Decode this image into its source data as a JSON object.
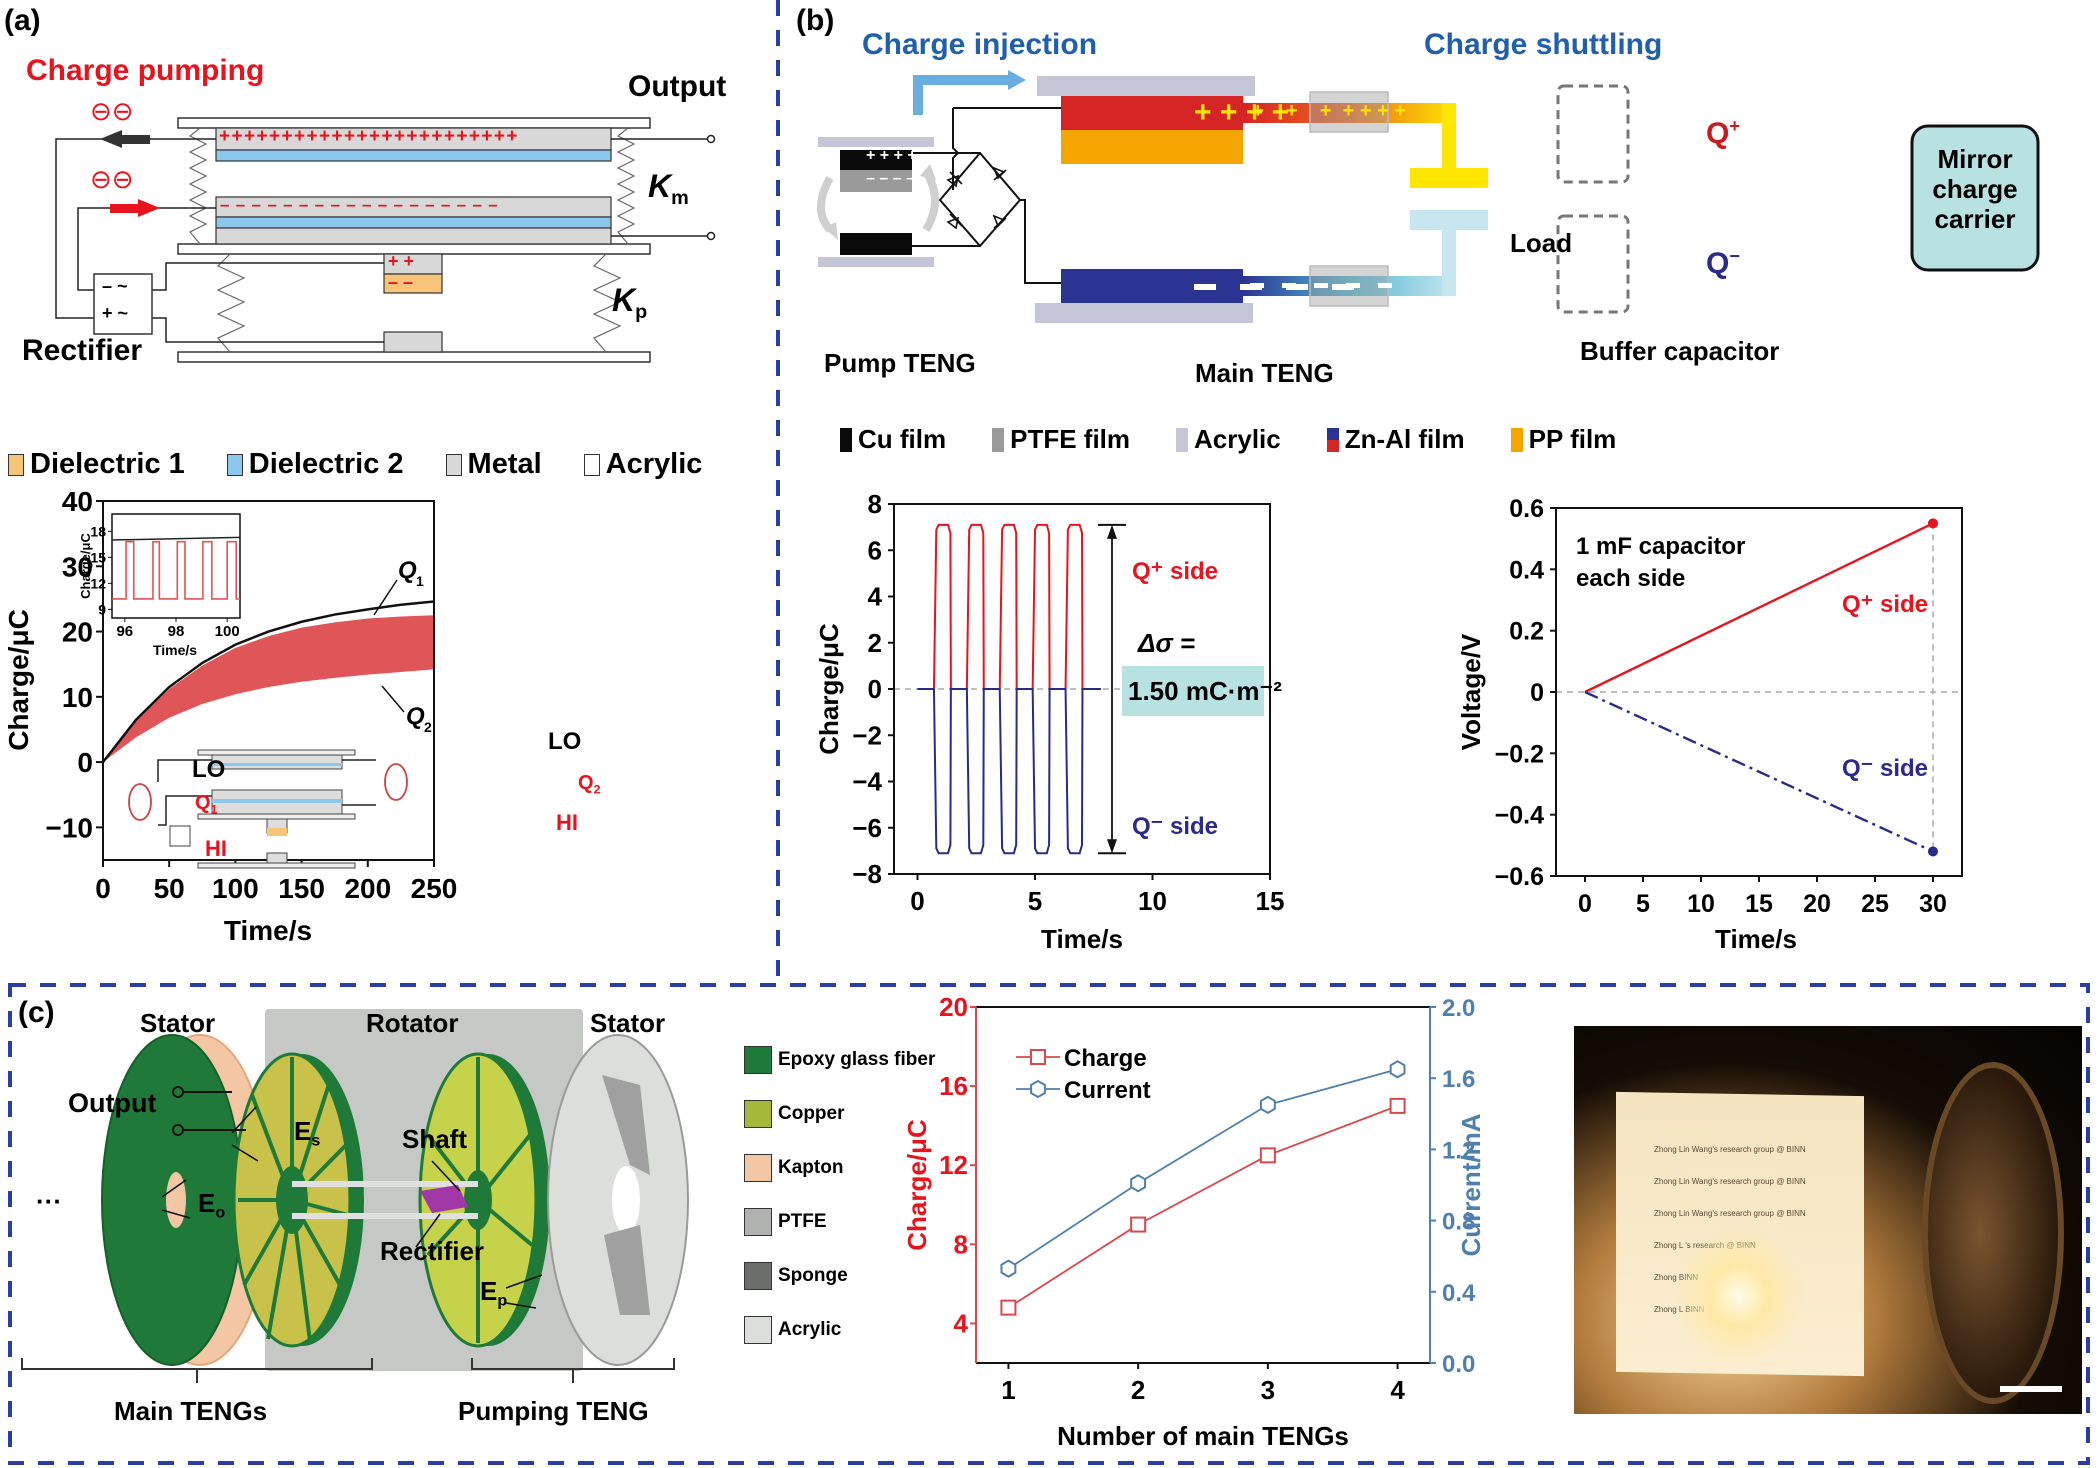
{
  "colors": {
    "divider": "#2a3ea6",
    "red": "#e8131c",
    "blue_title": "#1f5fae",
    "navy": "#2b2a8c",
    "q1_black": "#111111",
    "q2_red": "#e05558",
    "teal_box": "#b8e2e2",
    "current_blue": "#4f7fad"
  },
  "panel_a": {
    "label": "(a)",
    "schematic": {
      "title": "Charge pumping",
      "output_label": "Output",
      "km_label": "K",
      "km_sub": "m",
      "kp_label": "K",
      "kp_sub": "p",
      "rectifier_label": "Rectifier",
      "top_charges": "++++++++++++++++++++++++",
      "bottom_charges": "– – – – – – – – – – – – – – – – – –",
      "pump_plus": "+   +",
      "pump_minus": "–   –",
      "rect_row1": "–  ~",
      "rect_row2": "+  ~",
      "electron_glyph": "⊖⊖"
    },
    "legend": [
      {
        "label": "Dielectric 1",
        "color": "#f7c47a"
      },
      {
        "label": "Dielectric 2",
        "color": "#8cc8ee"
      },
      {
        "label": "Metal",
        "color": "#d8d8d8"
      },
      {
        "label": "Acrylic",
        "color": "#ffffff"
      }
    ],
    "inset_circuit": {
      "lo_left": "LO",
      "lo_right": "LO",
      "hi_left": "HI",
      "hi_right": "HI",
      "q1": "Q",
      "q1_sub": "1",
      "q2": "Q",
      "q2_sub": "2"
    }
  },
  "panel_b": {
    "label": "(b)",
    "charge_injection": "Charge injection",
    "charge_shuttling": "Charge shuttling",
    "pump_teng": "Pump TENG",
    "main_teng": "Main TENG",
    "buffer_capacitor": "Buffer capacitor",
    "load": "Load",
    "q_plus": "Q",
    "q_minus": "Q",
    "mirror_box": [
      "Mirror",
      "charge",
      "carrier"
    ],
    "pump_plus": "+ + + +",
    "pump_minus": "– – – –",
    "main_plus": "+   +   +   +",
    "legend": [
      {
        "label": "Cu film",
        "color": "#0a0a0a"
      },
      {
        "label": "PTFE film",
        "color": "#9a9a9a"
      },
      {
        "label": "Acrylic",
        "color": "#c4c6d8"
      },
      {
        "label": "Zn-Al film",
        "color": "#2b3393",
        "color2": "#d42424"
      },
      {
        "label": "PP film",
        "color": "#f5a500"
      }
    ]
  },
  "panel_c": {
    "label": "(c)",
    "stator_left": "Stator",
    "rotator": "Rotator",
    "stator_right": "Stator",
    "output": "Output",
    "es": "E",
    "es_sub": "s",
    "eo": "E",
    "eo_sub": "o",
    "ep": "E",
    "ep_sub": "p",
    "shaft": "Shaft",
    "rectifier": "Rectifier",
    "ellipsis": "···",
    "main_tengs": "Main TENGs",
    "pumping_teng": "Pumping TENG",
    "legend": [
      {
        "label": "Epoxy glass fiber",
        "color": "#1f7a3a"
      },
      {
        "label": "Copper",
        "color": "#a6b83a"
      },
      {
        "label": "Kapton",
        "color": "#f3c6a4"
      },
      {
        "label": "PTFE",
        "color": "#b0b2b0"
      },
      {
        "label": "Sponge",
        "color": "#6c6e6b"
      },
      {
        "label": "Acrylic",
        "color": "#dcdedc"
      }
    ],
    "photo": {
      "paper_lines": [
        "Zhong Lin Wang's research group @ BINN",
        "Zhong Lin Wang's research group @ BINN",
        "Zhong Lin Wang's research group @ BINN",
        "Zhong L          's research      @ BINN",
        "Zhong                                  BINN",
        "Zhong L                                BINN"
      ]
    }
  },
  "chart_data": [
    {
      "id": "a-charge-vs-time",
      "type": "line",
      "title": "",
      "xlabel": "Time/s",
      "ylabel": "Charge/μC",
      "xlim": [
        0,
        250
      ],
      "ylim": [
        -15,
        40
      ],
      "xticks": [
        0,
        50,
        100,
        150,
        200,
        250
      ],
      "yticks": [
        -10,
        0,
        10,
        20,
        30,
        40
      ],
      "ytick_labels": [
        "−10",
        "0",
        "10",
        "20",
        "30",
        "40"
      ],
      "grid": false,
      "series": [
        {
          "name": "Q1",
          "style": "line",
          "x": [
            0,
            25,
            50,
            75,
            100,
            125,
            150,
            175,
            200,
            225,
            250
          ],
          "y": [
            0,
            6.5,
            11.5,
            15.2,
            18.0,
            20.0,
            21.5,
            22.6,
            23.4,
            24.1,
            24.6
          ]
        },
        {
          "name": "Q2 upper envelope",
          "style": "band-top",
          "x": [
            0,
            25,
            50,
            75,
            100,
            125,
            150,
            175,
            200,
            225,
            250
          ],
          "y": [
            0,
            6.3,
            11.2,
            14.8,
            17.5,
            19.3,
            20.6,
            21.4,
            22.0,
            22.3,
            22.5
          ]
        },
        {
          "name": "Q2 lower envelope",
          "style": "band-bottom",
          "x": [
            0,
            25,
            50,
            75,
            100,
            125,
            150,
            175,
            200,
            225,
            250
          ],
          "y": [
            0,
            3.8,
            6.8,
            8.9,
            10.4,
            11.5,
            12.3,
            12.9,
            13.4,
            13.8,
            14.2
          ]
        }
      ],
      "annotations": [
        "Q1",
        "Q2"
      ],
      "inset": {
        "xlabel": "Time/s",
        "ylabel": "Charge/μC",
        "xlim": [
          95.5,
          100.5
        ],
        "ylim": [
          8,
          20
        ],
        "xticks": [
          96,
          98,
          100
        ],
        "yticks": [
          9,
          12,
          15,
          18
        ],
        "q1_level": [
          17.0,
          17.3
        ],
        "q2_low": 10.2,
        "q2_high": 16.8,
        "q2_high_intervals": [
          [
            96.05,
            96.35
          ],
          [
            97.1,
            97.35
          ],
          [
            98.05,
            98.35
          ],
          [
            99.05,
            99.4
          ],
          [
            100.0,
            100.35
          ]
        ]
      }
    },
    {
      "id": "b-charge-vs-time",
      "type": "line",
      "xlabel": "Time/s",
      "ylabel": "Charge/μC",
      "xlim": [
        -1,
        15
      ],
      "ylim": [
        -8,
        8
      ],
      "xticks": [
        0,
        5,
        10,
        15
      ],
      "yticks": [
        -8,
        -6,
        -4,
        -2,
        0,
        2,
        4,
        6,
        8
      ],
      "ytick_labels": [
        "−8",
        "−6",
        "−4",
        "−2",
        "0",
        "2",
        "4",
        "6",
        "8"
      ],
      "series": [
        {
          "name": "Q+ side",
          "color": "#e8131c",
          "baseline": 0,
          "peak": 7.1
        },
        {
          "name": "Q− side",
          "color": "#2b2a8c",
          "baseline": 0,
          "peak": -7.1
        }
      ],
      "pulse_intervals": [
        [
          0.7,
          1.4
        ],
        [
          2.1,
          2.8
        ],
        [
          3.5,
          4.2
        ],
        [
          4.9,
          5.6
        ],
        [
          6.3,
          7.0
        ]
      ],
      "trace_end": 7.8,
      "annotations": {
        "q_plus": "Q⁺ side",
        "q_minus": "Q⁻ side",
        "delta_sigma": "Δσ =",
        "delta_value": "1.50 mC·m⁻²"
      }
    },
    {
      "id": "b-voltage-vs-time",
      "type": "line",
      "xlabel": "Time/s",
      "ylabel": "Voltage/V",
      "xlim": [
        -2.5,
        32.5
      ],
      "ylim": [
        -0.6,
        0.6
      ],
      "xticks": [
        0,
        5,
        10,
        15,
        20,
        25,
        30
      ],
      "yticks": [
        -0.6,
        -0.4,
        -0.2,
        0,
        0.2,
        0.4,
        0.6
      ],
      "ytick_labels": [
        "−0.6",
        "−0.4",
        "−0.2",
        "0",
        "0.2",
        "0.4",
        "0.6"
      ],
      "series": [
        {
          "name": "Q+ side",
          "color": "#e8131c",
          "style": "solid",
          "x": [
            0,
            30
          ],
          "y": [
            0,
            0.55
          ]
        },
        {
          "name": "Q− side",
          "color": "#2b2a8c",
          "style": "dashdot",
          "x": [
            0,
            30
          ],
          "y": [
            0,
            -0.52
          ]
        }
      ],
      "annotations": {
        "note_line1": "1 mF capacitor",
        "note_line2": "each side",
        "q_plus": "Q⁺ side",
        "q_minus": "Q⁻ side"
      }
    },
    {
      "id": "c-charge-current",
      "type": "line",
      "xlabel": "Number of main TENGs",
      "ylabel_left": "Charge/μC",
      "ylabel_right": "Current/mA",
      "categories": [
        1,
        2,
        3,
        4
      ],
      "xlim": [
        0.75,
        4.25
      ],
      "ylim_left": [
        2,
        20
      ],
      "ylim_right": [
        0,
        2.0
      ],
      "yticks_left": [
        4,
        8,
        12,
        16,
        20
      ],
      "yticks_right": [
        "0.0",
        "0.4",
        "0.8",
        "1.2",
        "1.6",
        "2.0"
      ],
      "series": [
        {
          "name": "Charge",
          "axis": "left",
          "marker": "square",
          "color": "#d9484c",
          "values": [
            4.8,
            9.0,
            12.5,
            15.0
          ]
        },
        {
          "name": "Current",
          "axis": "right",
          "marker": "hexagon",
          "color": "#4f7fad",
          "values": [
            0.53,
            1.01,
            1.45,
            1.65
          ]
        }
      ],
      "legend_position": "top-left"
    }
  ]
}
